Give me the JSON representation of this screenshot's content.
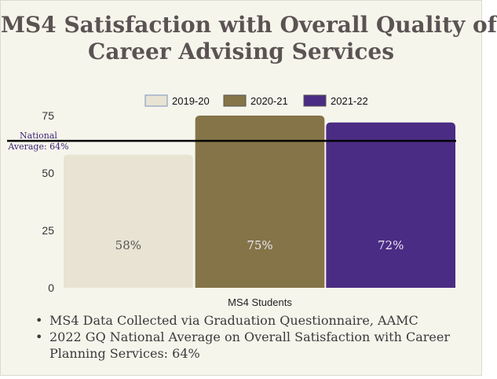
{
  "title_line1": "MS4 Satisfaction with Overall Quality of",
  "title_line2": "Career Advising Services",
  "chart_data": {
    "type": "bar",
    "categories": [
      "MS4 Students"
    ],
    "series": [
      {
        "name": "2019-20",
        "values": [
          58
        ],
        "label": "58%",
        "color": "#e8e3d3"
      },
      {
        "name": "2020-21",
        "values": [
          75
        ],
        "label": "75%",
        "color": "#857448"
      },
      {
        "name": "2021-22",
        "values": [
          72
        ],
        "label": "72%",
        "color": "#4b2c84"
      }
    ],
    "ylim": [
      0,
      75
    ],
    "yticks": [
      0,
      25,
      50,
      75
    ],
    "xlabel": "MS4 Students",
    "ylabel": "",
    "legend_position": "top",
    "reference_line": {
      "value": 64,
      "label_line1": "National",
      "label_line2": "Average: 64%",
      "color": "#000000"
    }
  },
  "bullets": [
    "MS4 Data Collected via Graduation Questionnaire, AAMC",
    "2022 GQ National Average on Overall Satisfaction with Career Planning Services: 64%"
  ]
}
